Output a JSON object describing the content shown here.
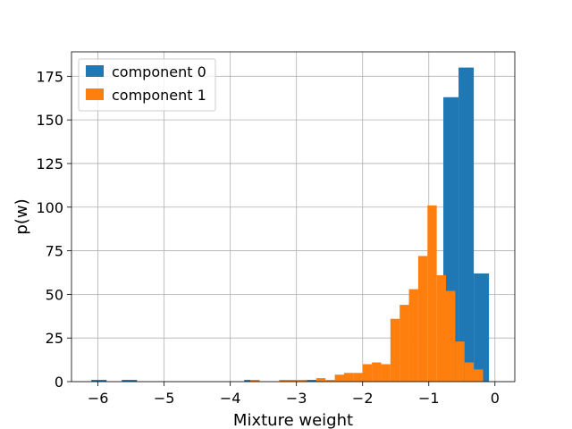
{
  "chart_data": {
    "type": "histogram",
    "xlabel": "Mixture weight",
    "ylabel": "p(w)",
    "xlim": [
      -6.4,
      0.3
    ],
    "ylim": [
      0,
      189
    ],
    "grid": true,
    "legend_position": "top-left",
    "xticks": [
      -6,
      -5,
      -4,
      -3,
      -2,
      -1,
      0
    ],
    "xtick_labels": [
      "−6",
      "−5",
      "−4",
      "−3",
      "−2",
      "−1",
      "0"
    ],
    "yticks": [
      0,
      25,
      50,
      75,
      100,
      125,
      150,
      175
    ],
    "ytick_labels": [
      "0",
      "25",
      "50",
      "75",
      "100",
      "125",
      "150",
      "175"
    ],
    "series": [
      {
        "name": "component 0",
        "color": "#1f77b4",
        "bins": [
          [
            -6.1,
            -5.87,
            1
          ],
          [
            -5.64,
            -5.41,
            1
          ],
          [
            -3.79,
            -3.56,
            1
          ],
          [
            -2.87,
            -2.64,
            1
          ],
          [
            -0.78,
            -0.55,
            163
          ],
          [
            -0.55,
            -0.32,
            180
          ],
          [
            -0.32,
            -0.09,
            62
          ]
        ]
      },
      {
        "name": "component 1",
        "color": "#ff7f0e",
        "bins": [
          [
            -3.7,
            -3.56,
            1
          ],
          [
            -3.26,
            -3.12,
            1
          ],
          [
            -3.12,
            -2.98,
            1
          ],
          [
            -2.98,
            -2.84,
            1
          ],
          [
            -2.7,
            -2.56,
            2
          ],
          [
            -2.56,
            -2.42,
            1
          ],
          [
            -2.42,
            -2.28,
            4
          ],
          [
            -2.28,
            -2.14,
            5
          ],
          [
            -2.14,
            -2.0,
            5
          ],
          [
            -2.0,
            -1.86,
            10
          ],
          [
            -1.86,
            -1.72,
            11
          ],
          [
            -1.72,
            -1.58,
            10
          ],
          [
            -1.58,
            -1.44,
            36
          ],
          [
            -1.44,
            -1.3,
            44
          ],
          [
            -1.3,
            -1.16,
            53
          ],
          [
            -1.16,
            -1.02,
            72
          ],
          [
            -1.02,
            -0.88,
            101
          ],
          [
            -0.88,
            -0.74,
            61
          ],
          [
            -0.74,
            -0.6,
            52
          ],
          [
            -0.6,
            -0.46,
            23
          ],
          [
            -0.46,
            -0.32,
            11
          ],
          [
            -0.32,
            -0.18,
            7
          ]
        ]
      }
    ]
  }
}
